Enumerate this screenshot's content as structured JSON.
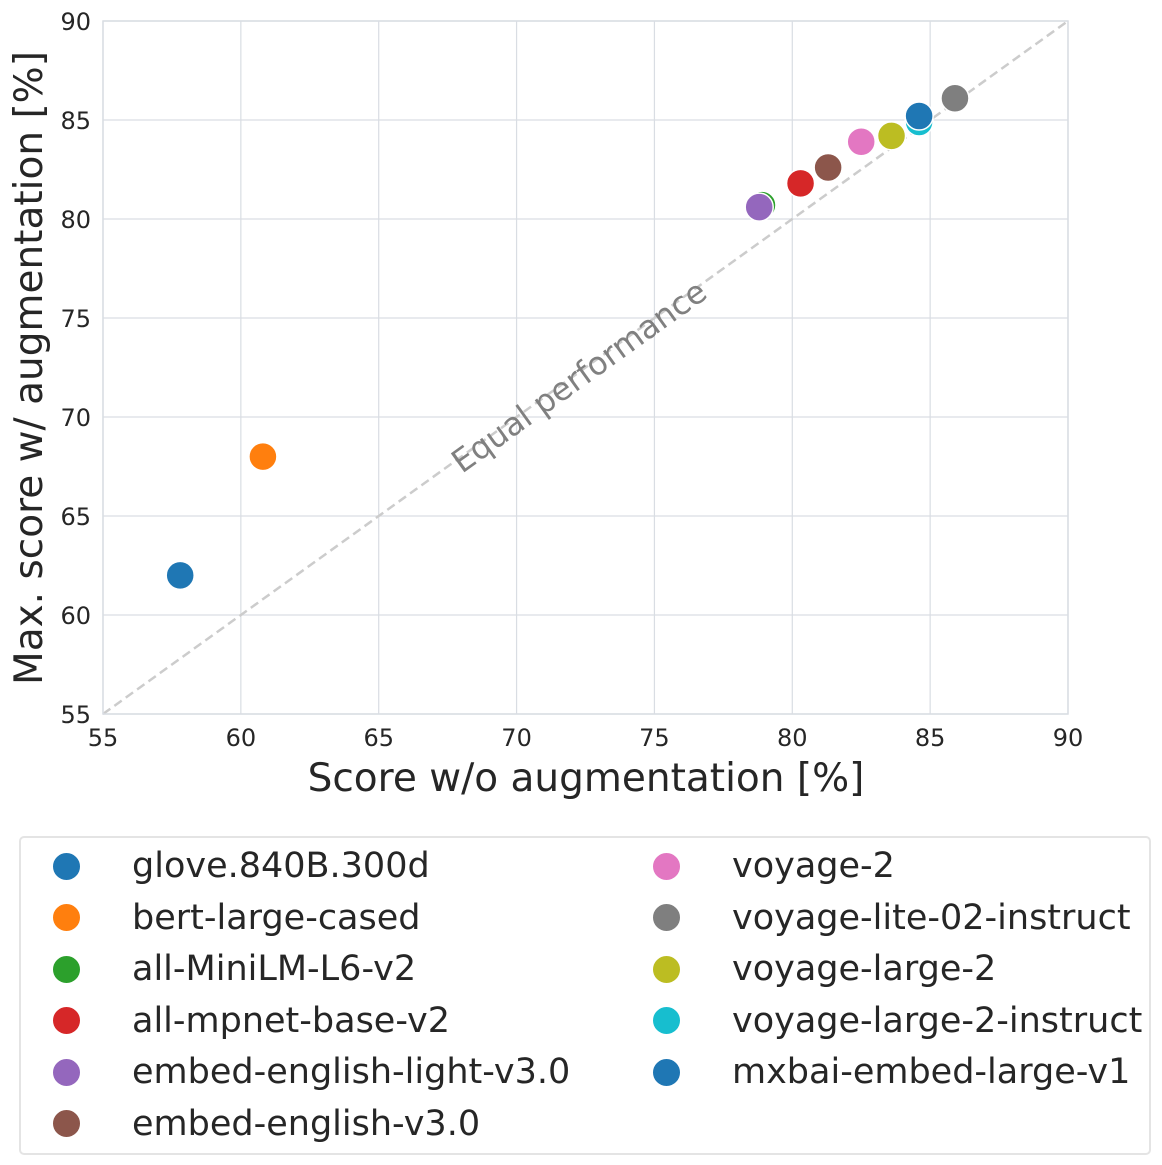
{
  "chart_data": {
    "type": "scatter",
    "xlabel": "Score w/o augmentation [%]",
    "ylabel": "Max. score w/ augmentation [%]",
    "xlim": [
      55,
      90
    ],
    "ylim": [
      55,
      90
    ],
    "x_ticks": [
      "55",
      "60",
      "65",
      "70",
      "75",
      "80",
      "85",
      "90"
    ],
    "y_ticks": [
      "55",
      "60",
      "65",
      "70",
      "75",
      "80",
      "85",
      "90"
    ],
    "grid": true,
    "reference_line": {
      "label": "Equal performance",
      "from": [
        55,
        55
      ],
      "to": [
        90,
        90
      ],
      "style": "dashed",
      "color": "#cccccc"
    },
    "legend_position": "below",
    "series": [
      {
        "name": "glove.840B.300d",
        "color": "#1f77b4",
        "x": 57.8,
        "y": 62.0
      },
      {
        "name": "bert-large-cased",
        "color": "#ff7f0e",
        "x": 60.8,
        "y": 68.0
      },
      {
        "name": "all-MiniLM-L6-v2",
        "color": "#2ca02c",
        "x": 78.9,
        "y": 80.7
      },
      {
        "name": "all-mpnet-base-v2",
        "color": "#d62728",
        "x": 80.3,
        "y": 81.8
      },
      {
        "name": "embed-english-light-v3.0",
        "color": "#9467bd",
        "x": 78.8,
        "y": 80.6
      },
      {
        "name": "embed-english-v3.0",
        "color": "#8c564b",
        "x": 81.3,
        "y": 82.6
      },
      {
        "name": "voyage-2",
        "color": "#e377c2",
        "x": 82.5,
        "y": 83.9
      },
      {
        "name": "voyage-lite-02-instruct",
        "color": "#7f7f7f",
        "x": 85.9,
        "y": 86.1
      },
      {
        "name": "voyage-large-2",
        "color": "#bcbd22",
        "x": 83.6,
        "y": 84.2
      },
      {
        "name": "voyage-large-2-instruct",
        "color": "#17becf",
        "x": 84.6,
        "y": 84.9
      },
      {
        "name": "mxbai-embed-large-v1",
        "color": "#1f77b4",
        "x": 84.6,
        "y": 85.2
      }
    ]
  }
}
